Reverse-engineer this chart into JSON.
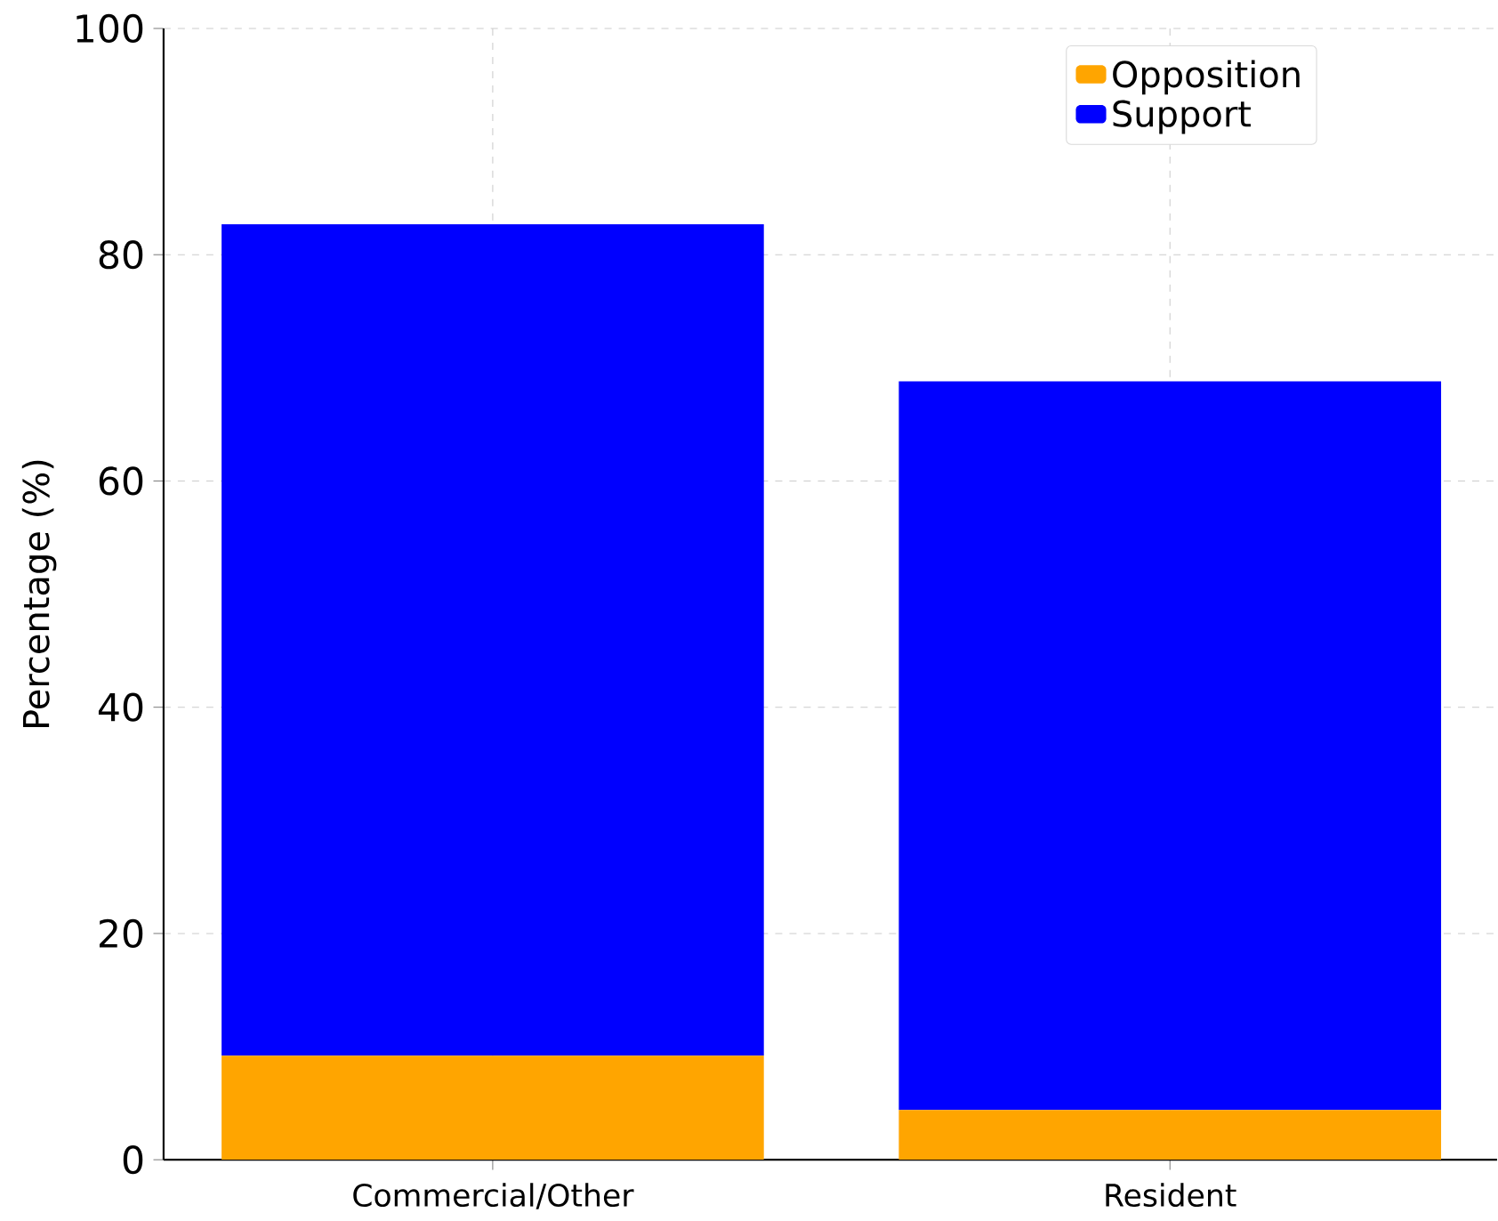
{
  "chart_data": {
    "type": "bar",
    "stacked": true,
    "ylabel": "Percentage (%)",
    "categories": [
      "Commercial/Other",
      "Resident"
    ],
    "series": [
      {
        "name": "Opposition",
        "color": "#ffa500",
        "values": [
          9.2,
          4.4
        ]
      },
      {
        "name": "Support",
        "color": "#0000ff",
        "values": [
          73.5,
          64.4
        ]
      }
    ],
    "ylim": [
      0,
      100
    ],
    "yticks": [
      0,
      20,
      40,
      60,
      80,
      100
    ],
    "grid": true,
    "legend": "top right"
  }
}
